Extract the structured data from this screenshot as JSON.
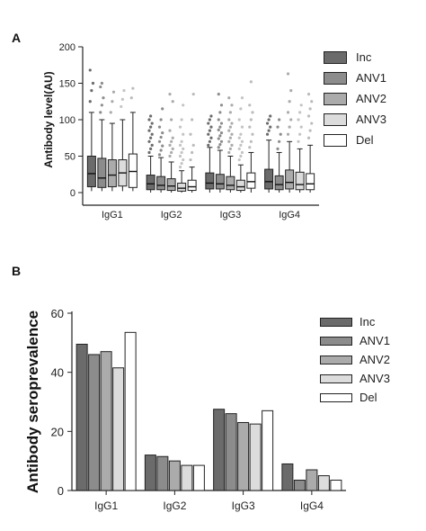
{
  "panels": {
    "a": {
      "label": "A"
    },
    "b": {
      "label": "B"
    }
  },
  "series_colors": {
    "Inc": "#6b6b6b",
    "ANV1": "#8c8c8c",
    "ANV2": "#ababab",
    "ANV3": "#dcdcdc",
    "Del": "#ffffff"
  },
  "chart_data": [
    {
      "type": "box",
      "ylabel": "Antibody level(AU)",
      "xlabel": "",
      "ylim": [
        0,
        200
      ],
      "yticks": [
        0,
        50,
        100,
        150,
        200
      ],
      "categories": [
        "IgG1",
        "IgG2",
        "IgG3",
        "IgG4"
      ],
      "legend": [
        "Inc",
        "ANV1",
        "ANV2",
        "ANV3",
        "Del"
      ],
      "legend_position": "right",
      "series": [
        {
          "name": "Inc",
          "boxes": [
            {
              "min": 2,
              "q1": 8,
              "median": 26,
              "q3": 50,
              "max": 110,
              "outliers": [
                125,
                140,
                150,
                168
              ]
            },
            {
              "min": 0,
              "q1": 4,
              "median": 12,
              "q3": 24,
              "max": 50,
              "outliers": [
                55,
                60,
                65,
                70,
                75,
                80,
                85,
                90,
                95,
                100,
                105
              ]
            },
            {
              "min": 0,
              "q1": 5,
              "median": 13,
              "q3": 27,
              "max": 62,
              "outliers": [
                65,
                70,
                75,
                80,
                85,
                90,
                95,
                100,
                105
              ]
            },
            {
              "min": 0,
              "q1": 5,
              "median": 15,
              "q3": 32,
              "max": 72,
              "outliers": [
                80,
                85,
                90,
                95,
                100,
                105
              ]
            }
          ]
        },
        {
          "name": "ANV1",
          "boxes": [
            {
              "min": 2,
              "q1": 7,
              "median": 20,
              "q3": 47,
              "max": 100,
              "outliers": [
                110,
                120,
                130,
                145,
                150
              ]
            },
            {
              "min": 0,
              "q1": 4,
              "median": 10,
              "q3": 22,
              "max": 48,
              "outliers": [
                52,
                58,
                64,
                70,
                76,
                82,
                90,
                100,
                115
              ]
            },
            {
              "min": 0,
              "q1": 5,
              "median": 12,
              "q3": 25,
              "max": 58,
              "outliers": [
                62,
                66,
                70,
                74,
                78,
                82,
                86,
                90,
                95,
                100,
                110,
                120,
                135
              ]
            },
            {
              "min": 0,
              "q1": 4,
              "median": 11,
              "q3": 23,
              "max": 55,
              "outliers": [
                60,
                70,
                80,
                90,
                100
              ]
            }
          ]
        },
        {
          "name": "ANV2",
          "boxes": [
            {
              "min": 2,
              "q1": 8,
              "median": 24,
              "q3": 45,
              "max": 95,
              "outliers": [
                110,
                125,
                138
              ]
            },
            {
              "min": 0,
              "q1": 3,
              "median": 9,
              "q3": 19,
              "max": 42,
              "outliers": [
                50,
                55,
                60,
                65,
                70,
                75,
                85,
                100,
                125,
                135
              ]
            },
            {
              "min": 0,
              "q1": 4,
              "median": 10,
              "q3": 22,
              "max": 50,
              "outliers": [
                55,
                60,
                65,
                70,
                75,
                80,
                85,
                90,
                95,
                100,
                110,
                120,
                130
              ]
            },
            {
              "min": 0,
              "q1": 5,
              "median": 14,
              "q3": 31,
              "max": 70,
              "outliers": [
                80,
                90,
                100,
                110,
                125,
                140,
                163
              ]
            }
          ]
        },
        {
          "name": "ANV3",
          "boxes": [
            {
              "min": 2,
              "q1": 9,
              "median": 27,
              "q3": 45,
              "max": 100,
              "outliers": [
                118,
                128,
                140
              ]
            },
            {
              "min": 0,
              "q1": 2,
              "median": 6,
              "q3": 13,
              "max": 30,
              "outliers": [
                35,
                40,
                45,
                50,
                55,
                60,
                65,
                70,
                80,
                90,
                100,
                120
              ]
            },
            {
              "min": 0,
              "q1": 3,
              "median": 8,
              "q3": 17,
              "max": 38,
              "outliers": [
                45,
                50,
                55,
                60,
                65,
                70,
                75,
                80,
                90,
                100,
                115,
                130
              ]
            },
            {
              "min": 0,
              "q1": 4,
              "median": 11,
              "q3": 28,
              "max": 60,
              "outliers": [
                70,
                80,
                90,
                100,
                110,
                120
              ]
            }
          ]
        },
        {
          "name": "Del",
          "boxes": [
            {
              "min": 2,
              "q1": 7,
              "median": 29,
              "q3": 53,
              "max": 110,
              "outliers": [
                130,
                143
              ]
            },
            {
              "min": 0,
              "q1": 3,
              "median": 8,
              "q3": 17,
              "max": 35,
              "outliers": [
                45,
                55,
                65,
                80,
                100,
                135
              ]
            },
            {
              "min": 0,
              "q1": 6,
              "median": 15,
              "q3": 27,
              "max": 55,
              "outliers": [
                62,
                70,
                80,
                90,
                100,
                110,
                120,
                152
              ]
            },
            {
              "min": 0,
              "q1": 4,
              "median": 12,
              "q3": 26,
              "max": 65,
              "outliers": [
                75,
                85,
                95,
                105,
                115,
                125,
                135
              ]
            }
          ]
        }
      ]
    },
    {
      "type": "bar",
      "ylabel": "Antibody seroprevalence",
      "xlabel": "",
      "ylim": [
        0,
        60
      ],
      "yticks": [
        0,
        20,
        40,
        60
      ],
      "categories": [
        "IgG1",
        "IgG2",
        "IgG3",
        "IgG4"
      ],
      "legend": [
        "Inc",
        "ANV1",
        "ANV2",
        "ANV3",
        "Del"
      ],
      "legend_position": "right",
      "series": [
        {
          "name": "Inc",
          "values": [
            49.5,
            12,
            27.5,
            9
          ]
        },
        {
          "name": "ANV1",
          "values": [
            46,
            11.5,
            26,
            3.5
          ]
        },
        {
          "name": "ANV2",
          "values": [
            47,
            10,
            23,
            7
          ]
        },
        {
          "name": "ANV3",
          "values": [
            41.5,
            8.5,
            22.5,
            5
          ]
        },
        {
          "name": "Del",
          "values": [
            53.5,
            8.5,
            27,
            3.5
          ]
        }
      ]
    }
  ]
}
